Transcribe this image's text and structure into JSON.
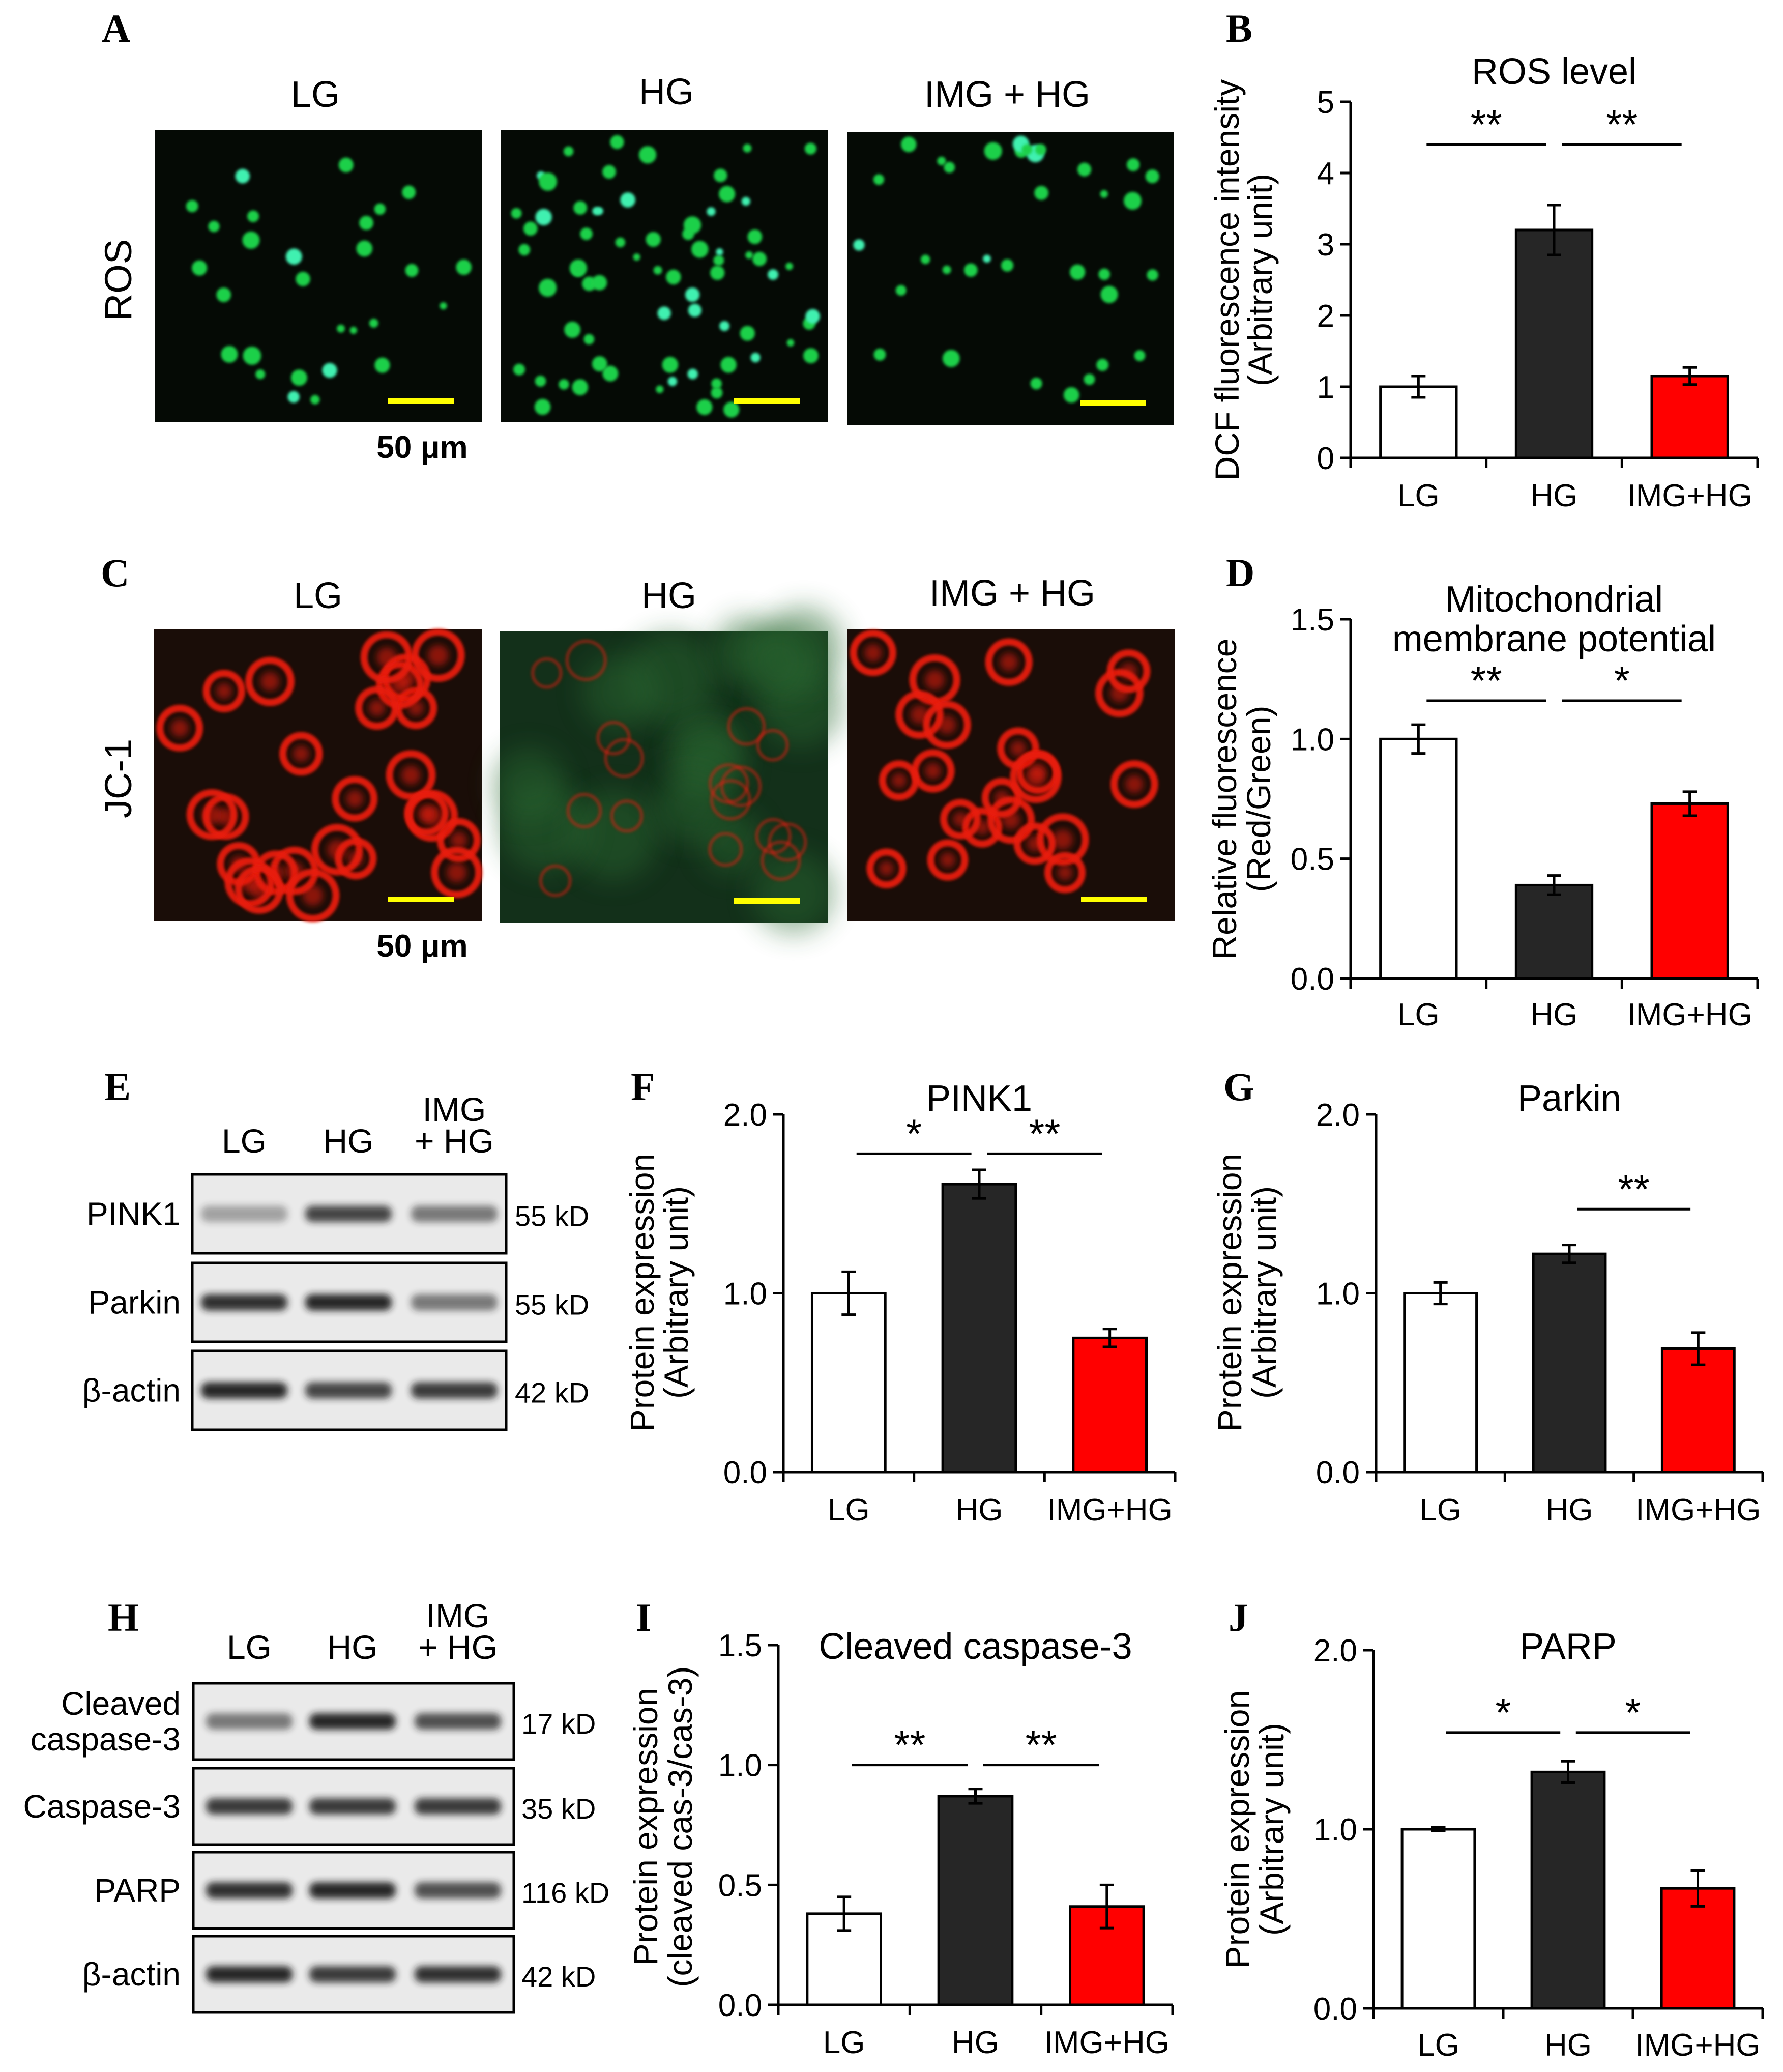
{
  "colors": {
    "lg": "#ffffff",
    "hg": "#262626",
    "img": "#ff0000",
    "stroke": "#000000",
    "scalebar": "#ffff00",
    "ros_bg": "#050a05",
    "ros_cell": "#1fd04a",
    "ros_cell_bright": "#40f0b0",
    "jc_bg_red": "#1a0d08",
    "jc_bg_green": "#13301a",
    "jc_cell": "#e81a10"
  },
  "panel_A": {
    "letter": "A",
    "row_label": "ROS",
    "columns": [
      "LG",
      "HG",
      "IMG + HG"
    ],
    "scale_label": "50 μm"
  },
  "panel_C": {
    "letter": "C",
    "row_label": "JC-1",
    "columns": [
      "LG",
      "HG",
      "IMG + HG"
    ],
    "scale_label": "50 μm"
  },
  "panel_E": {
    "letter": "E",
    "lanes": [
      "LG",
      "HG",
      "IMG\n+ HG"
    ],
    "blots": [
      {
        "label": "PINK1",
        "kd": "55 kD"
      },
      {
        "label": "Parkin",
        "kd": "55 kD"
      },
      {
        "label": "β-actin",
        "kd": "42 kD"
      }
    ]
  },
  "panel_H": {
    "letter": "H",
    "lanes": [
      "LG",
      "HG",
      "IMG\n+ HG"
    ],
    "blots": [
      {
        "label": "Cleaved\ncaspase-3",
        "kd": "17 kD"
      },
      {
        "label": "Caspase-3",
        "kd": "35 kD"
      },
      {
        "label": "PARP",
        "kd": "116 kD"
      },
      {
        "label": "β-actin",
        "kd": "42 kD"
      }
    ]
  },
  "chart_data": [
    {
      "id": "B",
      "letter": "B",
      "type": "bar",
      "title": [
        "ROS level"
      ],
      "ylabel": [
        "DCF fluorescence intensity",
        "(Arbitrary unit)"
      ],
      "categories": [
        "LG",
        "HG",
        "IMG+HG"
      ],
      "values": [
        1.0,
        3.2,
        1.15
      ],
      "errors": [
        0.15,
        0.35,
        0.12
      ],
      "ylim": [
        0,
        5
      ],
      "yticks": [
        0,
        1,
        2,
        3,
        4,
        5
      ],
      "ytick_labels": [
        "0",
        "1",
        "2",
        "3",
        "4",
        "5"
      ],
      "significance": [
        {
          "from": 0,
          "to": 1,
          "label": "**",
          "y": 4.4
        },
        {
          "from": 1,
          "to": 2,
          "label": "**",
          "y": 4.4
        }
      ]
    },
    {
      "id": "D",
      "letter": "D",
      "type": "bar",
      "title": [
        "Mitochondrial",
        "membrane potential"
      ],
      "ylabel": [
        "Relative fluorescence",
        "(Red/Green)"
      ],
      "categories": [
        "LG",
        "HG",
        "IMG+HG"
      ],
      "values": [
        1.0,
        0.39,
        0.73
      ],
      "errors": [
        0.06,
        0.04,
        0.05
      ],
      "ylim": [
        0,
        1.5
      ],
      "yticks": [
        0,
        0.5,
        1.0,
        1.5
      ],
      "ytick_labels": [
        "0.0",
        "0.5",
        "1.0",
        "1.5"
      ],
      "significance": [
        {
          "from": 0,
          "to": 1,
          "label": "**",
          "y": 1.16
        },
        {
          "from": 1,
          "to": 2,
          "label": "*",
          "y": 1.16
        }
      ]
    },
    {
      "id": "F",
      "letter": "F",
      "type": "bar",
      "title": [
        "PINK1"
      ],
      "ylabel": [
        "Protein expression",
        "(Arbitrary unit)"
      ],
      "categories": [
        "LG",
        "HG",
        "IMG+HG"
      ],
      "values": [
        1.0,
        1.61,
        0.75
      ],
      "errors": [
        0.12,
        0.08,
        0.05
      ],
      "ylim": [
        0,
        2.0
      ],
      "yticks": [
        0,
        1.0,
        2.0
      ],
      "ytick_labels": [
        "0.0",
        "1.0",
        "2.0"
      ],
      "significance": [
        {
          "from": 0,
          "to": 1,
          "label": "*",
          "y": 1.78
        },
        {
          "from": 1,
          "to": 2,
          "label": "**",
          "y": 1.78
        }
      ]
    },
    {
      "id": "G",
      "letter": "G",
      "type": "bar",
      "title": [
        "Parkin"
      ],
      "ylabel": [
        "Protein expression",
        "(Arbitrary unit)"
      ],
      "categories": [
        "LG",
        "HG",
        "IMG+HG"
      ],
      "values": [
        1.0,
        1.22,
        0.69
      ],
      "errors": [
        0.06,
        0.05,
        0.09
      ],
      "ylim": [
        0,
        2.0
      ],
      "yticks": [
        0,
        1.0,
        2.0
      ],
      "ytick_labels": [
        "0.0",
        "1.0",
        "2.0"
      ],
      "significance": [
        {
          "from": 1,
          "to": 2,
          "label": "**",
          "y": 1.47
        }
      ]
    },
    {
      "id": "I",
      "letter": "I",
      "type": "bar",
      "title": [
        "Cleaved caspase-3"
      ],
      "ylabel": [
        "Protein expression",
        "(cleaved cas-3/cas-3)"
      ],
      "categories": [
        "LG",
        "HG",
        "IMG+HG"
      ],
      "values": [
        0.38,
        0.87,
        0.41
      ],
      "errors": [
        0.07,
        0.03,
        0.09
      ],
      "ylim": [
        0,
        1.5
      ],
      "yticks": [
        0,
        0.5,
        1.0,
        1.5
      ],
      "ytick_labels": [
        "0.0",
        "0.5",
        "1.0",
        "1.5"
      ],
      "significance": [
        {
          "from": 0,
          "to": 1,
          "label": "**",
          "y": 1.0
        },
        {
          "from": 1,
          "to": 2,
          "label": "**",
          "y": 1.0
        }
      ]
    },
    {
      "id": "J",
      "letter": "J",
      "type": "bar",
      "title": [
        "PARP"
      ],
      "ylabel": [
        "Protein expression",
        "(Arbitrary unit)"
      ],
      "categories": [
        "LG",
        "HG",
        "IMG+HG"
      ],
      "values": [
        1.0,
        1.32,
        0.67
      ],
      "errors": [
        0.01,
        0.06,
        0.1
      ],
      "ylim": [
        0,
        2.0
      ],
      "yticks": [
        0,
        1.0,
        2.0
      ],
      "ytick_labels": [
        "0.0",
        "1.0",
        "2.0"
      ],
      "significance": [
        {
          "from": 0,
          "to": 1,
          "label": "*",
          "y": 1.54
        },
        {
          "from": 1,
          "to": 2,
          "label": "*",
          "y": 1.54
        }
      ]
    }
  ]
}
